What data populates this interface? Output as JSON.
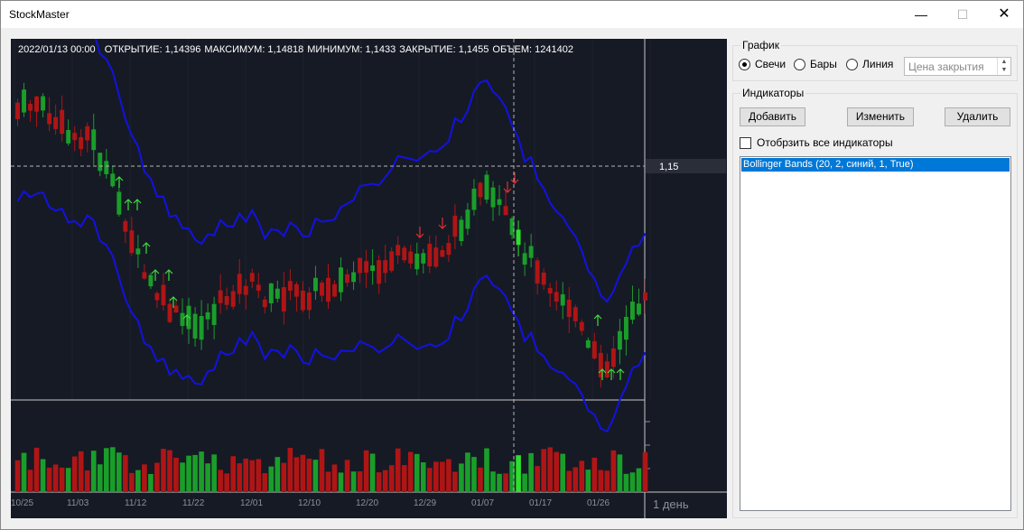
{
  "app": {
    "title": "StockMaster"
  },
  "window_controls": {
    "minimize": "—",
    "maximize": "☐",
    "close": "✕"
  },
  "ohlc": {
    "datetime": "2022/01/13 00:00",
    "open": "ОТКРЫТИЕ: 1,14396",
    "high": "МАКСИМУМ: 1,14818",
    "low": "МИНИМУМ: 1,1433",
    "close": "ЗАКРЫТИЕ: 1,1455",
    "volume": "ОБЪЕМ: 1241402"
  },
  "chart": {
    "price_label": "1,15",
    "timeframe": "1 день",
    "colors": {
      "background": "#161a25",
      "up": "#1a9e2a",
      "down": "#b01515",
      "band": "#1212e0",
      "highlight": "#2de02d",
      "signal_up": "#3ddc3d",
      "signal_down": "#e03030"
    }
  },
  "chart_data": {
    "type": "candlestick",
    "x_tick_labels": [
      "10/25",
      "11/03",
      "11/12",
      "11/22",
      "12/01",
      "12/10",
      "12/20",
      "12/29",
      "01/07",
      "01/17",
      "01/26"
    ],
    "crosshair_price": 1.15,
    "indicator": "Bollinger Bands (20, 2, синий, 1, True)"
  },
  "graph_group": {
    "title": "График",
    "options": [
      {
        "label": "Свечи",
        "selected": true
      },
      {
        "label": "Бары",
        "selected": false
      },
      {
        "label": "Линия",
        "selected": false
      }
    ],
    "price_select": "Цена закрытия"
  },
  "indicators_group": {
    "title": "Индикаторы",
    "add_label": "Добавить",
    "edit_label": "Изменить",
    "delete_label": "Удалить",
    "show_all_label": "Отобрзить все индикаторы",
    "items": [
      "Bollinger Bands (20, 2, синий, 1, True)"
    ]
  }
}
